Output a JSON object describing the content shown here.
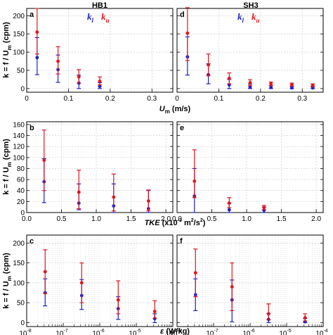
{
  "figure": {
    "column_titles": [
      "HB1",
      "SH3"
    ],
    "ylabel": "k = f / U_m (cpm)",
    "row_xlabels": [
      "U_m (m/s)",
      "TKE (x10^-3 m^2/s^2)",
      "ε (W/kg)"
    ],
    "legend": {
      "lower": "k_l",
      "upper": "k_u"
    },
    "colors": {
      "lower": "#1f1fc8",
      "upper": "#e0161d",
      "grid": "#c8c8c8"
    }
  },
  "chart_data": [
    {
      "panel": "a",
      "column": "HB1",
      "type": "scatter",
      "error_bars": true,
      "xlabel": "U_m (m/s)",
      "ylabel": "k = f / U_m (cpm)",
      "xlim": [
        0,
        0.35
      ],
      "ylim": [
        -10,
        220
      ],
      "xscale": "linear",
      "xticks": [
        0,
        0.1,
        0.2,
        0.3
      ],
      "xticklabels": [
        "0",
        "0.1",
        "0.2",
        "0.3"
      ],
      "yticks": [
        0,
        50,
        100,
        150,
        200
      ],
      "yticklabels": [
        "0",
        "50",
        "100",
        "150",
        "200"
      ],
      "grid": true,
      "legend": "top",
      "series": [
        {
          "name": "k_l",
          "x": [
            0.025,
            0.075,
            0.125,
            0.175
          ],
          "y": [
            85,
            52,
            15,
            6
          ],
          "err_low": [
            47,
            35,
            15,
            6
          ],
          "err_high": [
            55,
            40,
            22,
            10
          ]
        },
        {
          "name": "k_u",
          "x": [
            0.025,
            0.075,
            0.125,
            0.175
          ],
          "y": [
            155,
            75,
            32,
            20
          ],
          "err_low": [
            60,
            35,
            17,
            10
          ],
          "err_high": [
            65,
            40,
            20,
            12
          ]
        }
      ]
    },
    {
      "panel": "b",
      "column": "HB1",
      "type": "scatter",
      "error_bars": true,
      "xlabel": "TKE (x10^-3 m^2/s^2)",
      "ylabel": "k = f / U_m (cpm)",
      "xlim": [
        0,
        2.1
      ],
      "ylim": [
        0,
        165
      ],
      "xscale": "linear",
      "xticks": [
        0,
        0.5,
        1.0,
        1.5,
        2.0
      ],
      "xticklabels": [
        "0.0",
        "0.5",
        "1.0",
        "1.5",
        "2.0"
      ],
      "yticks": [
        0,
        20,
        40,
        60,
        80,
        100,
        120,
        140,
        160
      ],
      "yticklabels": [
        "0",
        "20",
        "40",
        "60",
        "80",
        "100",
        "120",
        "140",
        "160"
      ],
      "grid": true,
      "series": [
        {
          "name": "k_l",
          "x": [
            0.25,
            0.75,
            1.25,
            1.75
          ],
          "y": [
            56,
            17,
            12,
            7
          ],
          "err_low": [
            38,
            12,
            12,
            7
          ],
          "err_high": [
            42,
            35,
            40,
            33
          ]
        },
        {
          "name": "k_u",
          "x": [
            0.25,
            0.75,
            1.25,
            1.75
          ],
          "y": [
            95,
            37,
            28,
            21
          ],
          "err_low": [
            55,
            30,
            25,
            18
          ],
          "err_high": [
            55,
            40,
            42,
            20
          ]
        }
      ]
    },
    {
      "panel": "c",
      "column": "HB1",
      "type": "scatter",
      "error_bars": true,
      "xlabel": "ε (W/kg)",
      "ylabel": "k = f / U_m (cpm)",
      "xlim": [
        1e-08,
        0.0001
      ],
      "ylim": [
        -10,
        220
      ],
      "xscale": "log",
      "xticks": [
        1e-08,
        1e-07,
        1e-06,
        1e-05,
        0.0001
      ],
      "xticklabels": [
        "10-8",
        "10-7",
        "10-6",
        "10-5",
        "10-4"
      ],
      "yticks": [
        0,
        50,
        100,
        150,
        200
      ],
      "yticklabels": [
        "0",
        "50",
        "100",
        "150",
        "200"
      ],
      "grid": true,
      "series": [
        {
          "name": "k_l",
          "x": [
            3.2e-08,
            3.2e-07,
            3.2e-06,
            3.2e-05
          ],
          "y": [
            75,
            68,
            35,
            10
          ],
          "err_low": [
            33,
            35,
            27,
            10
          ],
          "err_high": [
            35,
            40,
            30,
            12
          ]
        },
        {
          "name": "k_u",
          "x": [
            3.2e-08,
            3.2e-07,
            3.2e-06,
            3.2e-05
          ],
          "y": [
            128,
            100,
            57,
            28
          ],
          "err_low": [
            55,
            50,
            35,
            17
          ],
          "err_high": [
            55,
            50,
            48,
            27
          ]
        }
      ]
    },
    {
      "panel": "d",
      "column": "SH3",
      "type": "scatter",
      "error_bars": true,
      "xlabel": "U_m (m/s)",
      "ylabel": "",
      "xlim": [
        0,
        0.35
      ],
      "ylim": [
        -10,
        220
      ],
      "xscale": "linear",
      "xticks": [
        0,
        0.1,
        0.2,
        0.3
      ],
      "xticklabels": [
        "0",
        "0.1",
        "0.2",
        "0.3"
      ],
      "yticks": [
        0,
        50,
        100,
        150,
        200
      ],
      "yticklabels": [],
      "grid": true,
      "legend": "top",
      "series": [
        {
          "name": "k_l",
          "x": [
            0.025,
            0.075,
            0.125,
            0.175,
            0.225,
            0.275,
            0.325
          ],
          "y": [
            87,
            38,
            10,
            4,
            3,
            2,
            2
          ],
          "err_low": [
            50,
            25,
            10,
            4,
            3,
            2,
            2
          ],
          "err_high": [
            55,
            30,
            15,
            8,
            5,
            4,
            4
          ]
        },
        {
          "name": "k_u",
          "x": [
            0.025,
            0.075,
            0.125,
            0.175,
            0.225,
            0.275,
            0.325
          ],
          "y": [
            152,
            65,
            28,
            16,
            13,
            11,
            9
          ],
          "err_low": [
            75,
            30,
            15,
            8,
            5,
            4,
            4
          ],
          "err_high": [
            70,
            30,
            15,
            8,
            5,
            4,
            4
          ]
        }
      ]
    },
    {
      "panel": "e",
      "column": "SH3",
      "type": "scatter",
      "error_bars": true,
      "xlabel": "TKE (x10^-3 m^2/s^2)",
      "ylabel": "",
      "xlim": [
        0,
        2.1
      ],
      "ylim": [
        0,
        165
      ],
      "xscale": "linear",
      "xticks": [
        0,
        0.5,
        1.0,
        1.5,
        2.0
      ],
      "xticklabels": [
        "0.0",
        "0.5",
        "1.0",
        "1.5",
        "2.0"
      ],
      "yticks": [
        0,
        20,
        40,
        60,
        80,
        100,
        120,
        140,
        160
      ],
      "yticklabels": [],
      "grid": true,
      "series": [
        {
          "name": "k_l",
          "x": [
            0.25,
            0.75,
            1.25
          ],
          "y": [
            30,
            5,
            4
          ],
          "err_low": [
            30,
            5,
            4
          ],
          "err_high": [
            50,
            12,
            6
          ]
        },
        {
          "name": "k_u",
          "x": [
            0.25,
            0.75,
            1.25
          ],
          "y": [
            57,
            17,
            9
          ],
          "err_low": [
            30,
            8,
            4
          ],
          "err_high": [
            57,
            10,
            4
          ]
        }
      ]
    },
    {
      "panel": "f",
      "column": "SH3",
      "type": "scatter",
      "error_bars": true,
      "xlabel": "ε (W/kg)",
      "ylabel": "",
      "xlim": [
        1e-08,
        0.0001
      ],
      "ylim": [
        -10,
        220
      ],
      "xscale": "log",
      "xticks": [
        1e-08,
        1e-07,
        1e-06,
        1e-05,
        0.0001
      ],
      "xticklabels": [
        "10-8",
        "10-7",
        "10-6",
        "10-5",
        "10-4"
      ],
      "yticks": [
        0,
        50,
        100,
        150,
        200
      ],
      "yticklabels": [],
      "grid": true,
      "series": [
        {
          "name": "k_l",
          "x": [
            3.2e-08,
            3.2e-07,
            3.2e-06,
            3.2e-05
          ],
          "y": [
            70,
            57,
            8,
            2
          ],
          "err_low": [
            40,
            55,
            8,
            2
          ],
          "err_high": [
            40,
            50,
            15,
            8
          ]
        },
        {
          "name": "k_u",
          "x": [
            3.2e-08,
            3.2e-07,
            3.2e-06,
            3.2e-05
          ],
          "y": [
            125,
            90,
            22,
            12
          ],
          "err_low": [
            60,
            60,
            15,
            8
          ],
          "err_high": [
            60,
            60,
            25,
            10
          ]
        }
      ]
    }
  ]
}
